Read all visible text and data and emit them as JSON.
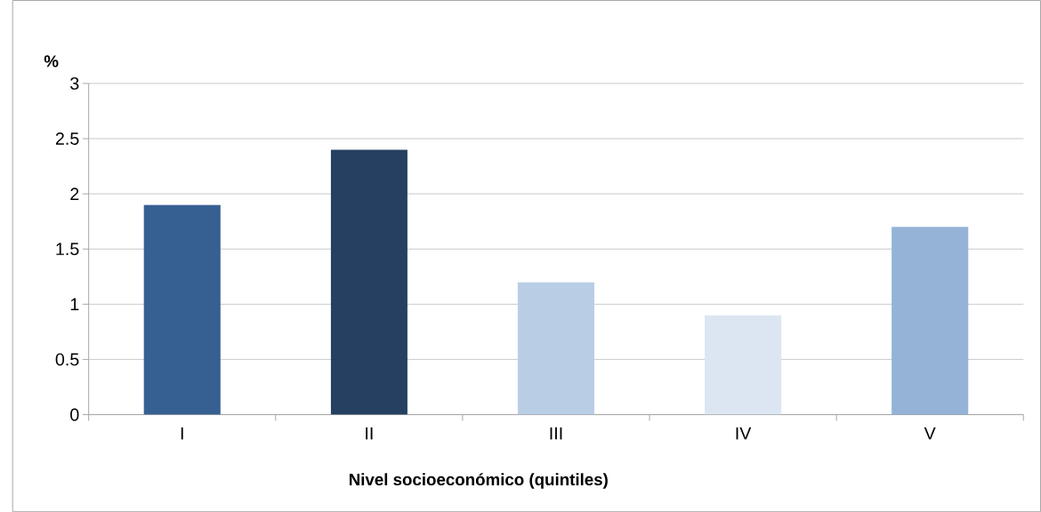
{
  "chart_data": {
    "type": "bar",
    "ylabel": "%",
    "xlabel": "Nivel socioeconómico (quintiles)",
    "categories": [
      "I",
      "II",
      "III",
      "IV",
      "V"
    ],
    "values": [
      1.9,
      2.4,
      1.2,
      0.9,
      1.7
    ],
    "colors": [
      "#366092",
      "#254061",
      "#b9cde5",
      "#dce6f2",
      "#95b3d7"
    ],
    "ylim": [
      0,
      3
    ],
    "yticks": [
      0,
      0.5,
      1,
      1.5,
      2,
      2.5,
      3
    ],
    "grid": "y"
  }
}
